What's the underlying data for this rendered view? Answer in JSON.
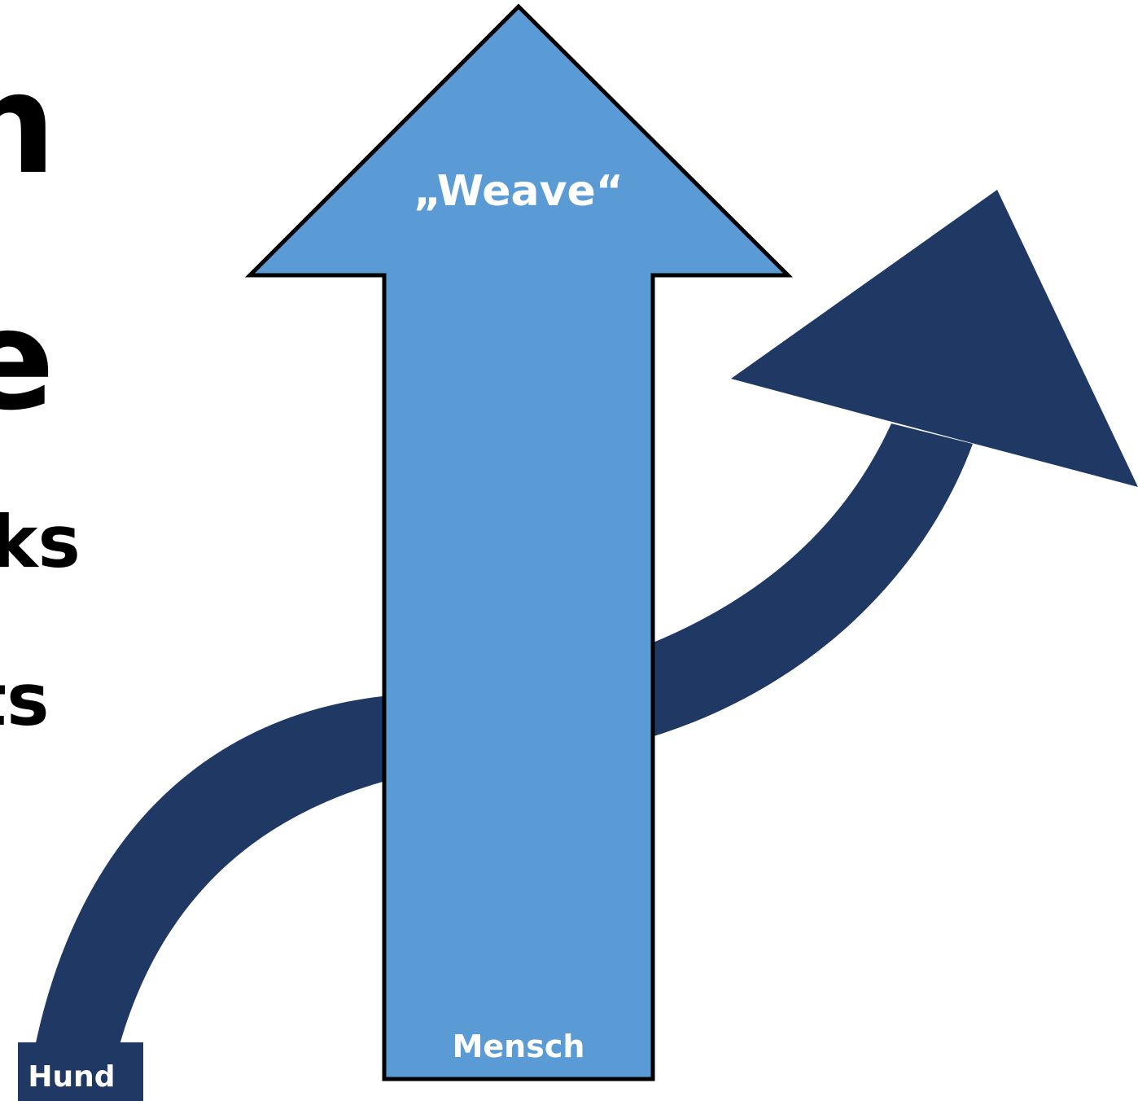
{
  "slide": {
    "edge_text": {
      "line1": "n",
      "line2": "e",
      "line3": "ks",
      "line4": "ts"
    }
  },
  "diagram": {
    "up_arrow": {
      "top_label": "„Weave“",
      "bottom_label": "Mensch",
      "fill_color": "#5b9bd5",
      "stroke_color": "#000000"
    },
    "curved_arrow": {
      "start_label": "Hund",
      "fill_color": "#203864"
    }
  }
}
